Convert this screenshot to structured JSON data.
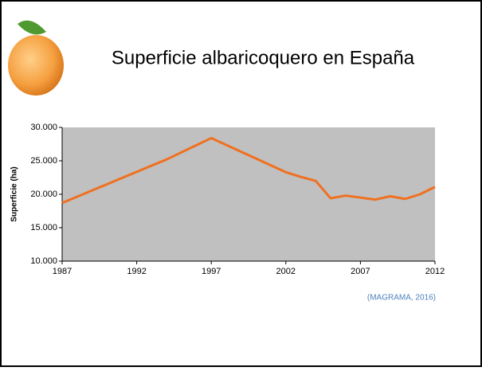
{
  "chart_data": {
    "type": "line",
    "title": "Superficie albaricoquero en España",
    "y_label": "Superficie (ha)",
    "source": "(MAGRAMA, 2016)",
    "x": [
      1987,
      1988,
      1989,
      1990,
      1991,
      1992,
      1993,
      1994,
      1995,
      1996,
      1997,
      1998,
      1999,
      2000,
      2001,
      2002,
      2003,
      2004,
      2005,
      2006,
      2007,
      2008,
      2009,
      2010,
      2011,
      2012
    ],
    "values": [
      18700,
      19630,
      20560,
      21490,
      22420,
      23350,
      24280,
      25200,
      26270,
      27340,
      28400,
      27380,
      26360,
      25340,
      24320,
      23300,
      22600,
      22000,
      19400,
      19800,
      19500,
      19200,
      19700,
      19300,
      20000,
      21100
    ],
    "color": "#f07020",
    "plot_background": "#c0c0c0",
    "xlim": [
      1987,
      2012
    ],
    "xticks": [
      1987,
      1992,
      1997,
      2002,
      2007,
      2012
    ],
    "ylim": [
      10000,
      30000
    ],
    "yticks": [
      {
        "value": 10000,
        "label": "10.000"
      },
      {
        "value": 15000,
        "label": "15.000"
      },
      {
        "value": 20000,
        "label": "20.000"
      },
      {
        "value": 25000,
        "label": "25.000"
      },
      {
        "value": 30000,
        "label": "30.000"
      }
    ]
  }
}
